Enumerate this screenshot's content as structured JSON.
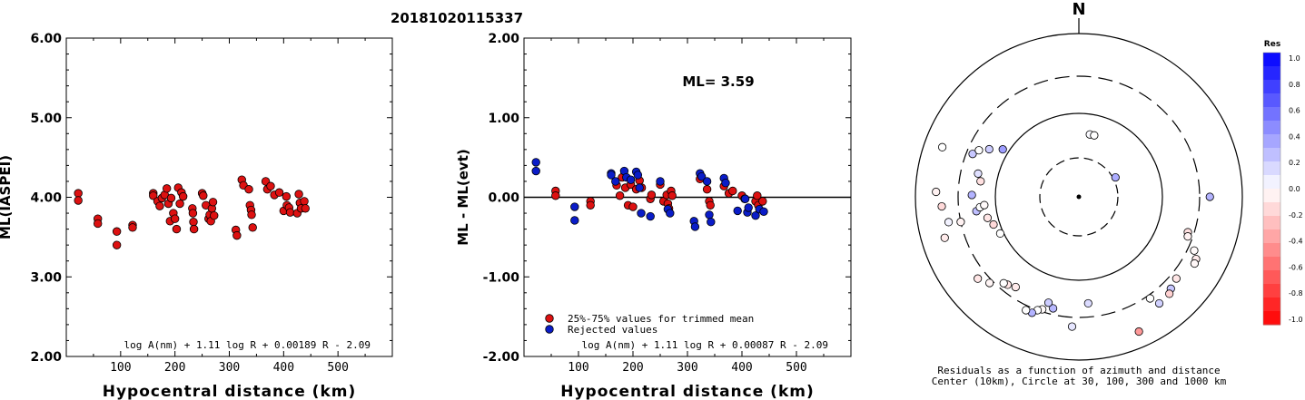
{
  "title": "20181020115337",
  "chart_data": [
    {
      "type": "scatter",
      "ylabel": "ML(IASPEI)",
      "xlabel": "Hypocentral distance (km)",
      "xlim": [
        0,
        600
      ],
      "ylim": [
        2.0,
        6.0
      ],
      "xticks": [
        "100",
        "200",
        "300",
        "400",
        "500"
      ],
      "yticks": [
        "2.00",
        "3.00",
        "4.00",
        "5.00",
        "6.00"
      ],
      "formula": "log A(nm) + 1.11 log R + 0.00189 R - 2.09",
      "color": "#dd1111",
      "points": [
        [
          22,
          4.05
        ],
        [
          22,
          3.96
        ],
        [
          58,
          3.73
        ],
        [
          58,
          3.67
        ],
        [
          93,
          3.57
        ],
        [
          93,
          3.4
        ],
        [
          122,
          3.65
        ],
        [
          122,
          3.62
        ],
        [
          160,
          4.05
        ],
        [
          160,
          4.02
        ],
        [
          168,
          3.95
        ],
        [
          172,
          3.89
        ],
        [
          176,
          3.99
        ],
        [
          181,
          4.03
        ],
        [
          185,
          4.11
        ],
        [
          188,
          3.92
        ],
        [
          191,
          3.7
        ],
        [
          193,
          3.99
        ],
        [
          197,
          3.8
        ],
        [
          200,
          3.73
        ],
        [
          203,
          3.6
        ],
        [
          206,
          4.12
        ],
        [
          209,
          3.92
        ],
        [
          212,
          4.06
        ],
        [
          215,
          4.01
        ],
        [
          232,
          3.86
        ],
        [
          233,
          3.8
        ],
        [
          234,
          3.69
        ],
        [
          235,
          3.6
        ],
        [
          250,
          4.05
        ],
        [
          252,
          4.02
        ],
        [
          257,
          3.9
        ],
        [
          262,
          3.73
        ],
        [
          264,
          3.78
        ],
        [
          266,
          3.7
        ],
        [
          268,
          3.86
        ],
        [
          270,
          3.94
        ],
        [
          272,
          3.77
        ],
        [
          312,
          3.59
        ],
        [
          314,
          3.52
        ],
        [
          323,
          4.22
        ],
        [
          326,
          4.15
        ],
        [
          336,
          4.1
        ],
        [
          338,
          3.9
        ],
        [
          340,
          3.84
        ],
        [
          341,
          3.78
        ],
        [
          343,
          3.62
        ],
        [
          367,
          4.2
        ],
        [
          370,
          4.1
        ],
        [
          376,
          4.14
        ],
        [
          383,
          4.03
        ],
        [
          392,
          4.06
        ],
        [
          400,
          3.83
        ],
        [
          405,
          4.01
        ],
        [
          406,
          3.9
        ],
        [
          410,
          3.87
        ],
        [
          412,
          3.81
        ],
        [
          425,
          3.8
        ],
        [
          428,
          4.04
        ],
        [
          430,
          3.93
        ],
        [
          432,
          3.86
        ],
        [
          438,
          3.95
        ],
        [
          440,
          3.86
        ]
      ]
    },
    {
      "type": "scatter",
      "ylabel": "ML - ML(evt)",
      "xlabel": "Hypocentral distance (km)",
      "xlim": [
        0,
        600
      ],
      "ylim": [
        -2.0,
        2.0
      ],
      "xticks": [
        "100",
        "200",
        "300",
        "400",
        "500"
      ],
      "yticks": [
        "-2.00",
        "-1.00",
        "0.00",
        "1.00",
        "2.00"
      ],
      "zero_line": 0,
      "annotation": "ML= 3.59",
      "formula": "log A(nm) + 1.11 log R + 0.00087 R - 2.09",
      "legend": [
        {
          "label": "25%-75% values for trimmed mean",
          "color": "#dd1111"
        },
        {
          "label": "Rejected values",
          "color": "#0a1cc8"
        }
      ],
      "series": [
        {
          "name": "25%-75% values for trimmed mean",
          "color": "#dd1111",
          "points": [
            [
              58,
              0.08
            ],
            [
              58,
              0.02
            ],
            [
              122,
              -0.05
            ],
            [
              122,
              -0.1
            ],
            [
              170,
              0.15
            ],
            [
              176,
              0.02
            ],
            [
              180,
              0.25
            ],
            [
              186,
              0.12
            ],
            [
              191,
              -0.1
            ],
            [
              196,
              0.16
            ],
            [
              200,
              -0.12
            ],
            [
              206,
              0.1
            ],
            [
              212,
              0.21
            ],
            [
              216,
              0.12
            ],
            [
              232,
              -0.02
            ],
            [
              234,
              0.03
            ],
            [
              250,
              0.16
            ],
            [
              256,
              -0.05
            ],
            [
              262,
              0.03
            ],
            [
              264,
              -0.08
            ],
            [
              266,
              -0.14
            ],
            [
              270,
              0.08
            ],
            [
              272,
              0.02
            ],
            [
              323,
              0.23
            ],
            [
              336,
              0.1
            ],
            [
              340,
              -0.05
            ],
            [
              342,
              -0.1
            ],
            [
              367,
              0.14
            ],
            [
              376,
              0.05
            ],
            [
              383,
              0.08
            ],
            [
              400,
              0.02
            ],
            [
              405,
              -0.02
            ],
            [
              425,
              -0.05
            ],
            [
              428,
              0.02
            ],
            [
              430,
              -0.1
            ],
            [
              438,
              -0.05
            ]
          ]
        },
        {
          "name": "Rejected values",
          "color": "#0a1cc8",
          "points": [
            [
              22,
              0.44
            ],
            [
              22,
              0.33
            ],
            [
              93,
              -0.12
            ],
            [
              93,
              -0.29
            ],
            [
              160,
              0.3
            ],
            [
              160,
              0.28
            ],
            [
              168,
              0.2
            ],
            [
              184,
              0.33
            ],
            [
              188,
              0.25
            ],
            [
              196,
              0.22
            ],
            [
              206,
              0.32
            ],
            [
              209,
              0.28
            ],
            [
              212,
              0.12
            ],
            [
              215,
              -0.2
            ],
            [
              232,
              -0.24
            ],
            [
              250,
              0.2
            ],
            [
              264,
              -0.15
            ],
            [
              268,
              -0.2
            ],
            [
              312,
              -0.3
            ],
            [
              314,
              -0.37
            ],
            [
              323,
              0.3
            ],
            [
              326,
              0.26
            ],
            [
              336,
              0.2
            ],
            [
              340,
              -0.22
            ],
            [
              343,
              -0.31
            ],
            [
              367,
              0.24
            ],
            [
              370,
              0.18
            ],
            [
              392,
              -0.17
            ],
            [
              406,
              -0.02
            ],
            [
              410,
              -0.19
            ],
            [
              412,
              -0.13
            ],
            [
              425,
              -0.23
            ],
            [
              432,
              -0.15
            ],
            [
              440,
              -0.18
            ]
          ]
        }
      ]
    },
    {
      "type": "polar",
      "north_label": "N",
      "caption_line1": "Residuals as a function of azimuth and distance",
      "caption_line2": "Center (10km), Circle at 30, 100, 300 and 1000 km",
      "colorbar": {
        "title": "Res",
        "range": [
          -1.0,
          1.0
        ],
        "tick_labels": [
          "1.0",
          "0.8",
          "0.6",
          "0.4",
          "0.2",
          "0.0",
          "-0.2",
          "-0.4",
          "-0.6",
          "-0.8",
          "-1.0"
        ]
      },
      "stations": [
        {
          "azimuth": 10,
          "distance": 58,
          "res": 0.02
        },
        {
          "azimuth": 14,
          "distance": 58,
          "res": 0.0
        },
        {
          "azimuth": 62,
          "distance": 32,
          "res": 0.32
        },
        {
          "azimuth": 90,
          "distance": 400,
          "res": 0.3
        },
        {
          "azimuth": 108,
          "distance": 250,
          "res": -0.12
        },
        {
          "azimuth": 110,
          "distance": 260,
          "res": -0.05
        },
        {
          "azimuth": 115,
          "distance": 360,
          "res": -0.02
        },
        {
          "azimuth": 118,
          "distance": 420,
          "res": -0.08
        },
        {
          "azimuth": 120,
          "distance": 430,
          "res": -0.03
        },
        {
          "azimuth": 130,
          "distance": 360,
          "res": -0.1
        },
        {
          "azimuth": 135,
          "distance": 390,
          "res": 0.22
        },
        {
          "azimuth": 137,
          "distance": 420,
          "res": -0.18
        },
        {
          "azimuth": 143,
          "distance": 430,
          "res": 0.18
        },
        {
          "azimuth": 145,
          "distance": 330,
          "res": 0.0
        },
        {
          "azimuth": 156,
          "distance": 640,
          "res": -0.4
        },
        {
          "azimuth": 175,
          "distance": 200,
          "res": 0.14
        },
        {
          "azimuth": 183,
          "distance": 390,
          "res": 0.1
        },
        {
          "azimuth": 193,
          "distance": 250,
          "res": 0.28
        },
        {
          "azimuth": 196,
          "distance": 220,
          "res": 0.2
        },
        {
          "azimuth": 198,
          "distance": 280,
          "res": -0.02
        },
        {
          "azimuth": 200,
          "distance": 300,
          "res": 0.0
        },
        {
          "azimuth": 202,
          "distance": 340,
          "res": 0.3
        },
        {
          "azimuth": 205,
          "distance": 340,
          "res": 0.0
        },
        {
          "azimuth": 215,
          "distance": 220,
          "res": -0.08
        },
        {
          "azimuth": 219,
          "distance": 240,
          "res": -0.1
        },
        {
          "azimuth": 221,
          "distance": 250,
          "res": 0.0
        },
        {
          "azimuth": 226,
          "distance": 330,
          "res": -0.04
        },
        {
          "azimuth": 231,
          "distance": 390,
          "res": -0.1
        },
        {
          "azimuth": 245,
          "distance": 110,
          "res": 0.0
        },
        {
          "azimuth": 252,
          "distance": 120,
          "res": -0.15
        },
        {
          "azimuth": 253,
          "distance": 520,
          "res": -0.08
        },
        {
          "azimuth": 257,
          "distance": 135,
          "res": -0.1
        },
        {
          "azimuth": 258,
          "distance": 300,
          "res": -0.05
        },
        {
          "azimuth": 259,
          "distance": 420,
          "res": 0.05
        },
        {
          "azimuth": 262,
          "distance": 180,
          "res": 0.25
        },
        {
          "azimuth": 264,
          "distance": 160,
          "res": 0.0
        },
        {
          "azimuth": 265,
          "distance": 140,
          "res": -0.02
        },
        {
          "azimuth": 266,
          "distance": 480,
          "res": -0.15
        },
        {
          "azimuth": 271,
          "distance": 200,
          "res": 0.3
        },
        {
          "azimuth": 272,
          "distance": 560,
          "res": -0.05
        },
        {
          "azimuth": 279,
          "distance": 160,
          "res": -0.12
        },
        {
          "azimuth": 283,
          "distance": 180,
          "res": 0.12
        },
        {
          "azimuth": 290,
          "distance": 600,
          "res": 0.0
        },
        {
          "azimuth": 292,
          "distance": 250,
          "res": 0.22
        },
        {
          "azimuth": 295,
          "distance": 220,
          "res": 0.0
        },
        {
          "azimuth": 298,
          "distance": 170,
          "res": 0.2
        },
        {
          "azimuth": 302,
          "distance": 120,
          "res": 0.38
        }
      ]
    }
  ]
}
